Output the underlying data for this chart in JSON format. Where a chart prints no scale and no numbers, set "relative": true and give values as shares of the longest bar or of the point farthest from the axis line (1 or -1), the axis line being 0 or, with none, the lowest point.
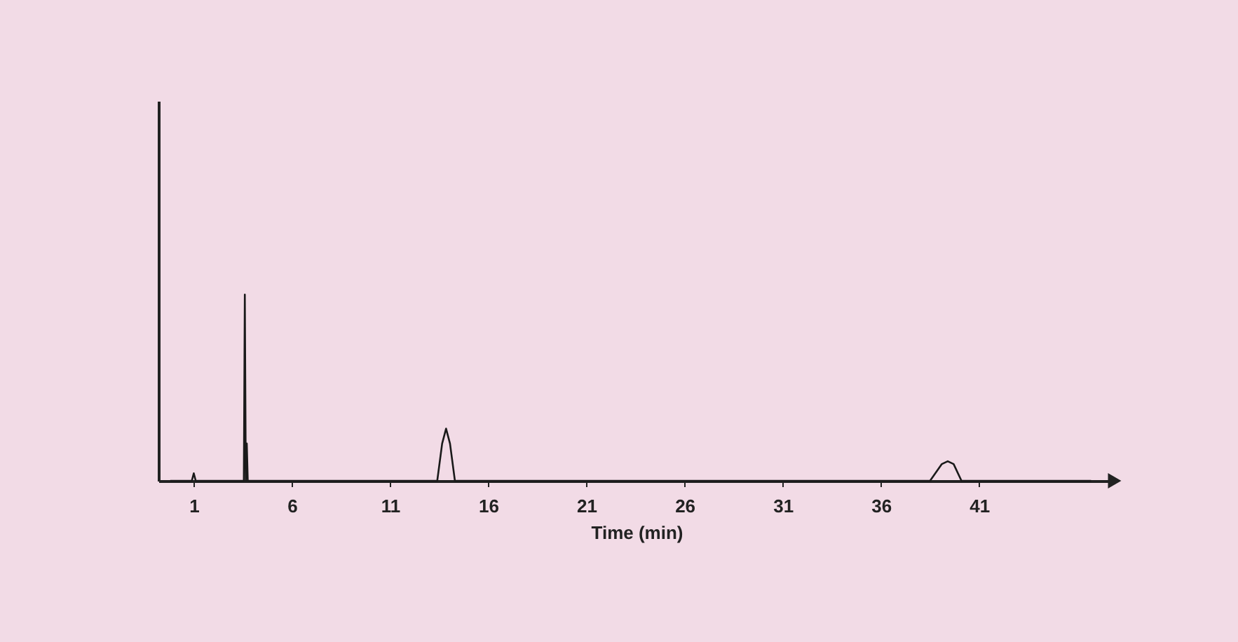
{
  "chart_data": {
    "type": "line",
    "relative": true,
    "xlabel": "Time (min)",
    "color": "#1a1a1a",
    "xlim": [
      -0.8,
      47.9
    ],
    "xticks": [
      1,
      6,
      11,
      16,
      21,
      26,
      31,
      36,
      41
    ],
    "tick_labels": "x",
    "grid": false,
    "marker": "none",
    "line_style": "solid",
    "x": [
      -0.2,
      0.9,
      1.0,
      1.1,
      3.45,
      3.55,
      3.6,
      3.65,
      3.7,
      3.75,
      3.85,
      13.4,
      13.65,
      13.85,
      14.05,
      14.3,
      38.5,
      39.1,
      39.4,
      39.7,
      40.1,
      46.7
    ],
    "values": [
      0,
      0,
      0.04,
      0,
      0,
      0,
      1,
      0,
      0.2,
      0,
      0,
      0,
      0.2,
      0.28,
      0.2,
      0,
      0,
      0.09,
      0.105,
      0.09,
      0,
      0
    ]
  }
}
